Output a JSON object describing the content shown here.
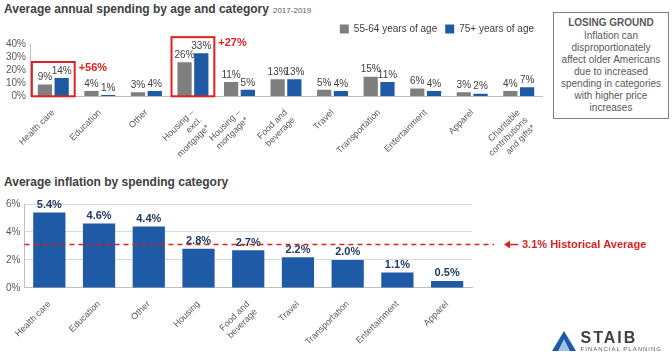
{
  "chart_data": [
    {
      "type": "bar",
      "title": "Average annual spending by age and category",
      "subtitle": "2017-2019",
      "categories": [
        "Health care",
        "Education",
        "Other",
        "Housing – excl. mortgage*",
        "Housing – mortgage*",
        "Food and beverage",
        "Travel",
        "Transportation",
        "Entertainment",
        "Apparel",
        "Charitable contributions and gifts*"
      ],
      "series": [
        {
          "name": "55-64 years of age",
          "color": "#7f7f7f",
          "values": [
            9,
            4,
            3,
            26,
            11,
            13,
            5,
            15,
            6,
            3,
            4
          ],
          "value_labels": [
            "9%",
            "4%",
            "3%",
            "26%",
            "11%",
            "13%",
            "5%",
            "15%",
            "6%",
            "3%",
            "4%"
          ]
        },
        {
          "name": "75+ years of age",
          "color": "#1f5aa6",
          "values": [
            14,
            1,
            4,
            33,
            5,
            13,
            4,
            11,
            4,
            2,
            7
          ],
          "value_labels": [
            "14%",
            "1%",
            "4%",
            "33%",
            "5%",
            "13%",
            "4%",
            "11%",
            "4%",
            "2%",
            "7%"
          ]
        }
      ],
      "ylim": [
        0,
        40
      ],
      "yticks": [
        {
          "value": 0,
          "label": "0%"
        },
        {
          "value": 10,
          "label": "10%"
        },
        {
          "value": 20,
          "label": "20%"
        },
        {
          "value": 30,
          "label": "30%"
        },
        {
          "value": 40,
          "label": "40%"
        }
      ],
      "grid": false,
      "legend": "upper right",
      "data_labels": true,
      "annotations": [
        {
          "text": "+56%",
          "category": "Health care"
        },
        {
          "text": "+27%",
          "category": "Housing – excl. mortgage*"
        }
      ]
    },
    {
      "type": "bar",
      "title": "Average inflation by spending category",
      "categories": [
        "Health care",
        "Education",
        "Other",
        "Housing",
        "Food and beverage",
        "Travel",
        "Transportation",
        "Entertainment",
        "Apparel"
      ],
      "values": [
        5.4,
        4.6,
        4.4,
        2.8,
        2.7,
        2.2,
        2.0,
        1.1,
        0.5
      ],
      "value_labels": [
        "5.4%",
        "4.6%",
        "4.4%",
        "2.8%",
        "2.7%",
        "2.2%",
        "2.0%",
        "1.1%",
        "0.5%"
      ],
      "color": "#1f5aa6",
      "ylim": [
        0,
        6
      ],
      "yticks": [
        {
          "value": 0,
          "label": "0%"
        },
        {
          "value": 2,
          "label": "2%"
        },
        {
          "value": 4,
          "label": "4%"
        },
        {
          "value": 6,
          "label": "6%"
        }
      ],
      "grid": true,
      "data_labels": true,
      "reference_line": {
        "value": 3.1,
        "label": "3.1% Historical Average"
      }
    }
  ],
  "sidebar": {
    "heading": "LOSING GROUND",
    "text": "Inflation can disproportionately affect older Americans due to increased spending in categories with higher price increases"
  },
  "logo": {
    "name": "STAIB",
    "tagline": "FINANCIAL PLANNING"
  }
}
